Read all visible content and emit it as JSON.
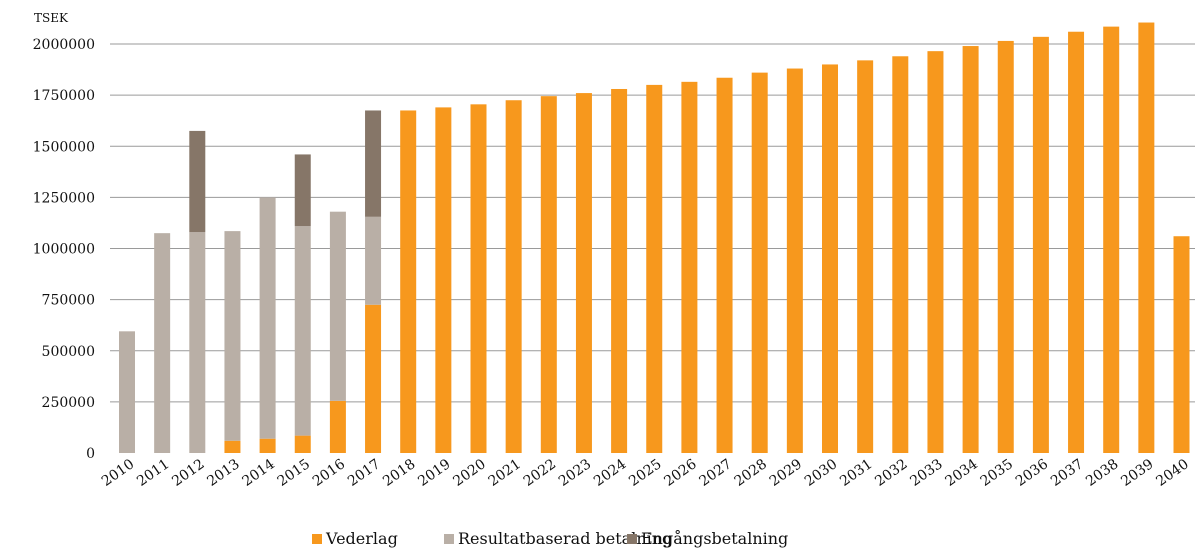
{
  "chart_data": {
    "type": "bar",
    "stacked": true,
    "title": "",
    "xlabel": "",
    "ylabel": "",
    "unit_label": "TSEK",
    "ylim": [
      0,
      2000000
    ],
    "yticks": [
      0,
      250000,
      500000,
      750000,
      1000000,
      1250000,
      1500000,
      1750000,
      2000000
    ],
    "ytick_labels": [
      "0",
      "250000",
      "500000",
      "750000",
      "1000000",
      "1250000",
      "1500000",
      "1750000",
      "2000000"
    ],
    "grid": true,
    "legend_position": "bottom",
    "categories": [
      "2010",
      "2011",
      "2012",
      "2013",
      "2014",
      "2015",
      "2016",
      "2017",
      "2018",
      "2019",
      "2020",
      "2021",
      "2022",
      "2023",
      "2024",
      "2025",
      "2026",
      "2027",
      "2028",
      "2029",
      "2030",
      "2031",
      "2032",
      "2033",
      "2034",
      "2035",
      "2036",
      "2037",
      "2038",
      "2039",
      "2040"
    ],
    "series": [
      {
        "name": "Vederlag",
        "color": "#F7981D",
        "values": [
          0,
          0,
          0,
          60000,
          70000,
          85000,
          255000,
          725000,
          1675000,
          1690000,
          1705000,
          1725000,
          1745000,
          1760000,
          1780000,
          1800000,
          1815000,
          1835000,
          1860000,
          1880000,
          1900000,
          1920000,
          1940000,
          1965000,
          1990000,
          2015000,
          2035000,
          2060000,
          2085000,
          2105000,
          1060000
        ]
      },
      {
        "name": "Resultatbaserad betalning",
        "color": "#B9AFA6",
        "values": [
          595000,
          1075000,
          1080000,
          1025000,
          1180000,
          1025000,
          925000,
          430000,
          0,
          0,
          0,
          0,
          0,
          0,
          0,
          0,
          0,
          0,
          0,
          0,
          0,
          0,
          0,
          0,
          0,
          0,
          0,
          0,
          0,
          0,
          0
        ]
      },
      {
        "name": "Engångsbetalning",
        "color": "#867668",
        "values": [
          0,
          0,
          495000,
          0,
          0,
          350000,
          0,
          520000,
          0,
          0,
          0,
          0,
          0,
          0,
          0,
          0,
          0,
          0,
          0,
          0,
          0,
          0,
          0,
          0,
          0,
          0,
          0,
          0,
          0,
          0,
          0
        ]
      }
    ]
  }
}
